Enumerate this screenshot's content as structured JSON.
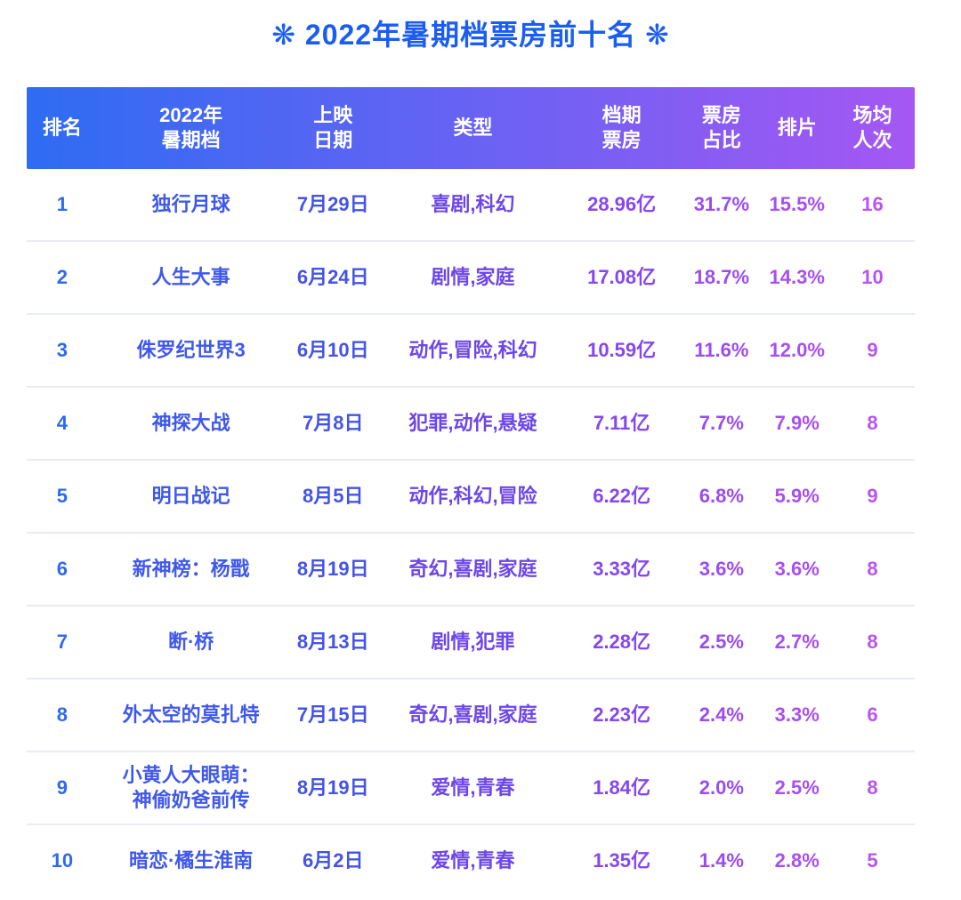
{
  "page_title": "❋ 2022年暑期档票房前十名 ❋",
  "theme": {
    "title_color": "#1a5df2",
    "header_gradient_start": "#2e6cf3",
    "header_gradient_end": "#a557f3",
    "header_text_color": "#ffffff",
    "row_divider_color": "#e9ebf7",
    "column_text_colors": [
      "#2e6af0",
      "#3f58ec",
      "#4453e8",
      "#6d46ea",
      "#8547ee",
      "#9b4cf1",
      "#a84ff2",
      "#b953f3"
    ]
  },
  "chart_data": {
    "type": "table",
    "title": "2022年暑期档票房前十名",
    "columns": [
      {
        "key": "rank",
        "label": "排名"
      },
      {
        "key": "movie-title",
        "label": "2022年\n暑期档"
      },
      {
        "key": "release-date",
        "label": "上映\n日期"
      },
      {
        "key": "genres",
        "label": "类型"
      },
      {
        "key": "box-office",
        "label": "档期\n票房"
      },
      {
        "key": "box-office-share",
        "label": "票房\n占比"
      },
      {
        "key": "screening-share",
        "label": "排片"
      },
      {
        "key": "avg-attendance",
        "label": "场均\n人次"
      }
    ],
    "rows": [
      [
        "1",
        "独行月球",
        "7月29日",
        "喜剧,科幻",
        "28.96亿",
        "31.7%",
        "15.5%",
        "16"
      ],
      [
        "2",
        "人生大事",
        "6月24日",
        "剧情,家庭",
        "17.08亿",
        "18.7%",
        "14.3%",
        "10"
      ],
      [
        "3",
        "侏罗纪世界3",
        "6月10日",
        "动作,冒险,科幻",
        "10.59亿",
        "11.6%",
        "12.0%",
        "9"
      ],
      [
        "4",
        "神探大战",
        "7月8日",
        "犯罪,动作,悬疑",
        "7.11亿",
        "7.7%",
        "7.9%",
        "8"
      ],
      [
        "5",
        "明日战记",
        "8月5日",
        "动作,科幻,冒险",
        "6.22亿",
        "6.8%",
        "5.9%",
        "9"
      ],
      [
        "6",
        "新神榜：杨戬",
        "8月19日",
        "奇幻,喜剧,家庭",
        "3.33亿",
        "3.6%",
        "3.6%",
        "8"
      ],
      [
        "7",
        "断·桥",
        "8月13日",
        "剧情,犯罪",
        "2.28亿",
        "2.5%",
        "2.7%",
        "8"
      ],
      [
        "8",
        "外太空的莫扎特",
        "7月15日",
        "奇幻,喜剧,家庭",
        "2.23亿",
        "2.4%",
        "3.3%",
        "6"
      ],
      [
        "9",
        "小黄人大眼萌：\n神偷奶爸前传",
        "8月19日",
        "爱情,青春",
        "1.84亿",
        "2.0%",
        "2.5%",
        "8"
      ],
      [
        "10",
        "暗恋·橘生淮南",
        "6月2日",
        "爱情,青春",
        "1.35亿",
        "1.4%",
        "2.8%",
        "5"
      ]
    ]
  }
}
